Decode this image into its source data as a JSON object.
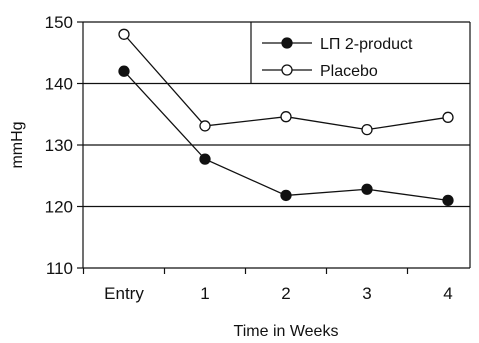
{
  "chart_data": {
    "type": "line",
    "categories": [
      "Entry",
      "1",
      "2",
      "3",
      "4"
    ],
    "series": [
      {
        "name": "LΠ 2-product",
        "values": [
          142,
          127.7,
          121.8,
          122.8,
          121
        ],
        "marker": "filled",
        "color": "#111111"
      },
      {
        "name": "Placebo",
        "values": [
          148,
          133.1,
          134.6,
          132.5,
          134.5
        ],
        "marker": "open",
        "color": "#111111"
      }
    ],
    "title": "",
    "xlabel": "Time in Weeks",
    "ylabel": "mmHg",
    "ylim": [
      110,
      150
    ],
    "yticks": [
      110,
      120,
      130,
      140,
      150
    ],
    "grid": "horizontal",
    "legend_position": "top-right"
  }
}
